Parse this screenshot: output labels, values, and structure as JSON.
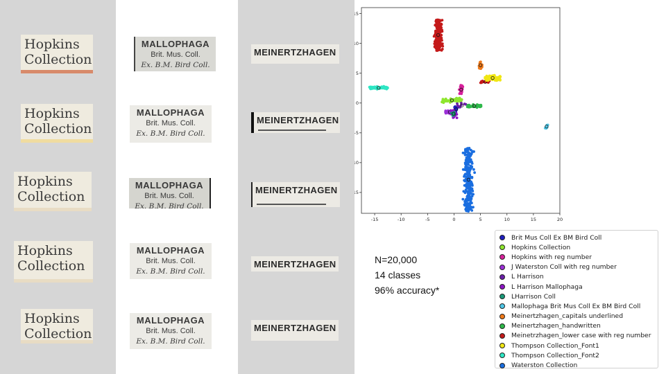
{
  "specimen_labels": {
    "hopkins": {
      "line1": "Hopkins",
      "line2": "Collection",
      "tint_colors": [
        "#d88a6a",
        "#f0dca0",
        "#e8dcc4",
        "#e8dcc4",
        "#e8dcc4"
      ]
    },
    "mallophaga": {
      "line1": "MALLOPHAGA",
      "line2": "Brit. Mus. Coll.",
      "line3": "Ex. B.M. Bird Coll."
    },
    "meinertzhagen": {
      "text": "MEINERTZHAGEN"
    }
  },
  "summary": {
    "n": "N=20,000",
    "classes": "14 classes",
    "accuracy": "96% accuracy*"
  },
  "chart_data": {
    "type": "scatter",
    "title": "",
    "xlabel": "",
    "ylabel": "",
    "xlim": [
      -17.5,
      20
    ],
    "ylim": [
      -18.5,
      16
    ],
    "xticks": [
      -15,
      -10,
      -5,
      0,
      5,
      10,
      15,
      20
    ],
    "yticks": [
      -15,
      -10,
      -5,
      0,
      5,
      10,
      15
    ],
    "grid": false,
    "legend_position": "lower-right-outside",
    "series": [
      {
        "name": "Brit Mus Coll Ex BM Bird Coll",
        "color": "#1f1fbf",
        "clusters": [
          {
            "x": [
              -0.2,
              1.0
            ],
            "y": [
              -1.5,
              -0.6
            ],
            "n": 25
          }
        ]
      },
      {
        "name": "Hopkins Collection",
        "color": "#8ee62e",
        "clusters": [
          {
            "x": [
              -2.3,
              1.5
            ],
            "y": [
              0.0,
              0.9
            ],
            "n": 70
          }
        ]
      },
      {
        "name": "Hopkins with reg number",
        "color": "#d6209b",
        "clusters": [
          {
            "x": [
              0.9,
              1.8
            ],
            "y": [
              1.5,
              3.0
            ],
            "n": 25
          }
        ]
      },
      {
        "name": "J Waterston Coll with reg number",
        "color": "#9b2fd6",
        "clusters": [
          {
            "x": [
              -1.8,
              0.2
            ],
            "y": [
              -2.0,
              -1.0
            ],
            "n": 25
          }
        ]
      },
      {
        "name": "L Harrison",
        "color": "#6a1fa8",
        "clusters": [
          {
            "x": [
              0.5,
              2.5
            ],
            "y": [
              -1.0,
              0.2
            ],
            "n": 8
          }
        ]
      },
      {
        "name": "L Harrison Mallophaga",
        "color": "#8c14c4",
        "clusters": [
          {
            "x": [
              -0.8,
              0.8
            ],
            "y": [
              -2.5,
              -1.2
            ],
            "n": 12
          }
        ]
      },
      {
        "name": "LHarrison Coll",
        "color": "#1a9a7a",
        "clusters": [
          {
            "x": [
              -0.6,
              0.4
            ],
            "y": [
              -2.2,
              -1.4
            ],
            "n": 6
          }
        ]
      },
      {
        "name": "Mallophaga Brit Mus Coll Ex BM Bird Coll",
        "color": "#4ec6e6",
        "clusters": [
          {
            "x": [
              17.0,
              18.0
            ],
            "y": [
              -4.3,
              -3.6
            ],
            "n": 8
          }
        ]
      },
      {
        "name": "Meinertzhagen_capitals underlined",
        "color": "#f07a1a",
        "clusters": [
          {
            "x": [
              4.6,
              5.4
            ],
            "y": [
              5.7,
              7.0
            ],
            "n": 25
          }
        ]
      },
      {
        "name": "Meinertzhagen_handwritten",
        "color": "#2eb84a",
        "clusters": [
          {
            "x": [
              2.5,
              5.2
            ],
            "y": [
              -0.8,
              -0.2
            ],
            "n": 40
          }
        ]
      },
      {
        "name": "Meinetrzhagen_lower case with reg number",
        "color": "#c41a1a",
        "clusters": [
          {
            "x": [
              -4.0,
              -2.0
            ],
            "y": [
              8.8,
              14.0
            ],
            "n": 200
          },
          {
            "x": [
              5.0,
              6.8
            ],
            "y": [
              3.3,
              3.8
            ],
            "n": 20
          }
        ]
      },
      {
        "name": "Thompson Collection_Font1",
        "color": "#f0e614",
        "clusters": [
          {
            "x": [
              5.8,
              8.8
            ],
            "y": [
              3.6,
              4.8
            ],
            "n": 70
          }
        ]
      },
      {
        "name": "Thompson Collection_Font2",
        "color": "#2ee6c4",
        "clusters": [
          {
            "x": [
              -16.0,
              -12.5
            ],
            "y": [
              2.2,
              2.9
            ],
            "n": 80
          }
        ]
      },
      {
        "name": "Waterston Collection",
        "color": "#1a6ee0",
        "clusters": [
          {
            "x": [
              1.5,
              4.0
            ],
            "y": [
              -18.2,
              -7.5
            ],
            "n": 260
          }
        ]
      }
    ],
    "legend": [
      "Brit Mus Coll Ex BM Bird Coll",
      "Hopkins Collection",
      "Hopkins with reg number",
      "J Waterston Coll with reg number",
      "L Harrison",
      "L Harrison Mallophaga",
      "LHarrison Coll",
      "Mallophaga Brit Mus Coll Ex BM Bird Coll",
      "Meinertzhagen_capitals underlined",
      "Meinertzhagen_handwritten",
      "Meinetrzhagen_lower case with reg number",
      "Thompson Collection_Font1",
      "Thompson Collection_Font2",
      "Waterston Collection"
    ]
  }
}
